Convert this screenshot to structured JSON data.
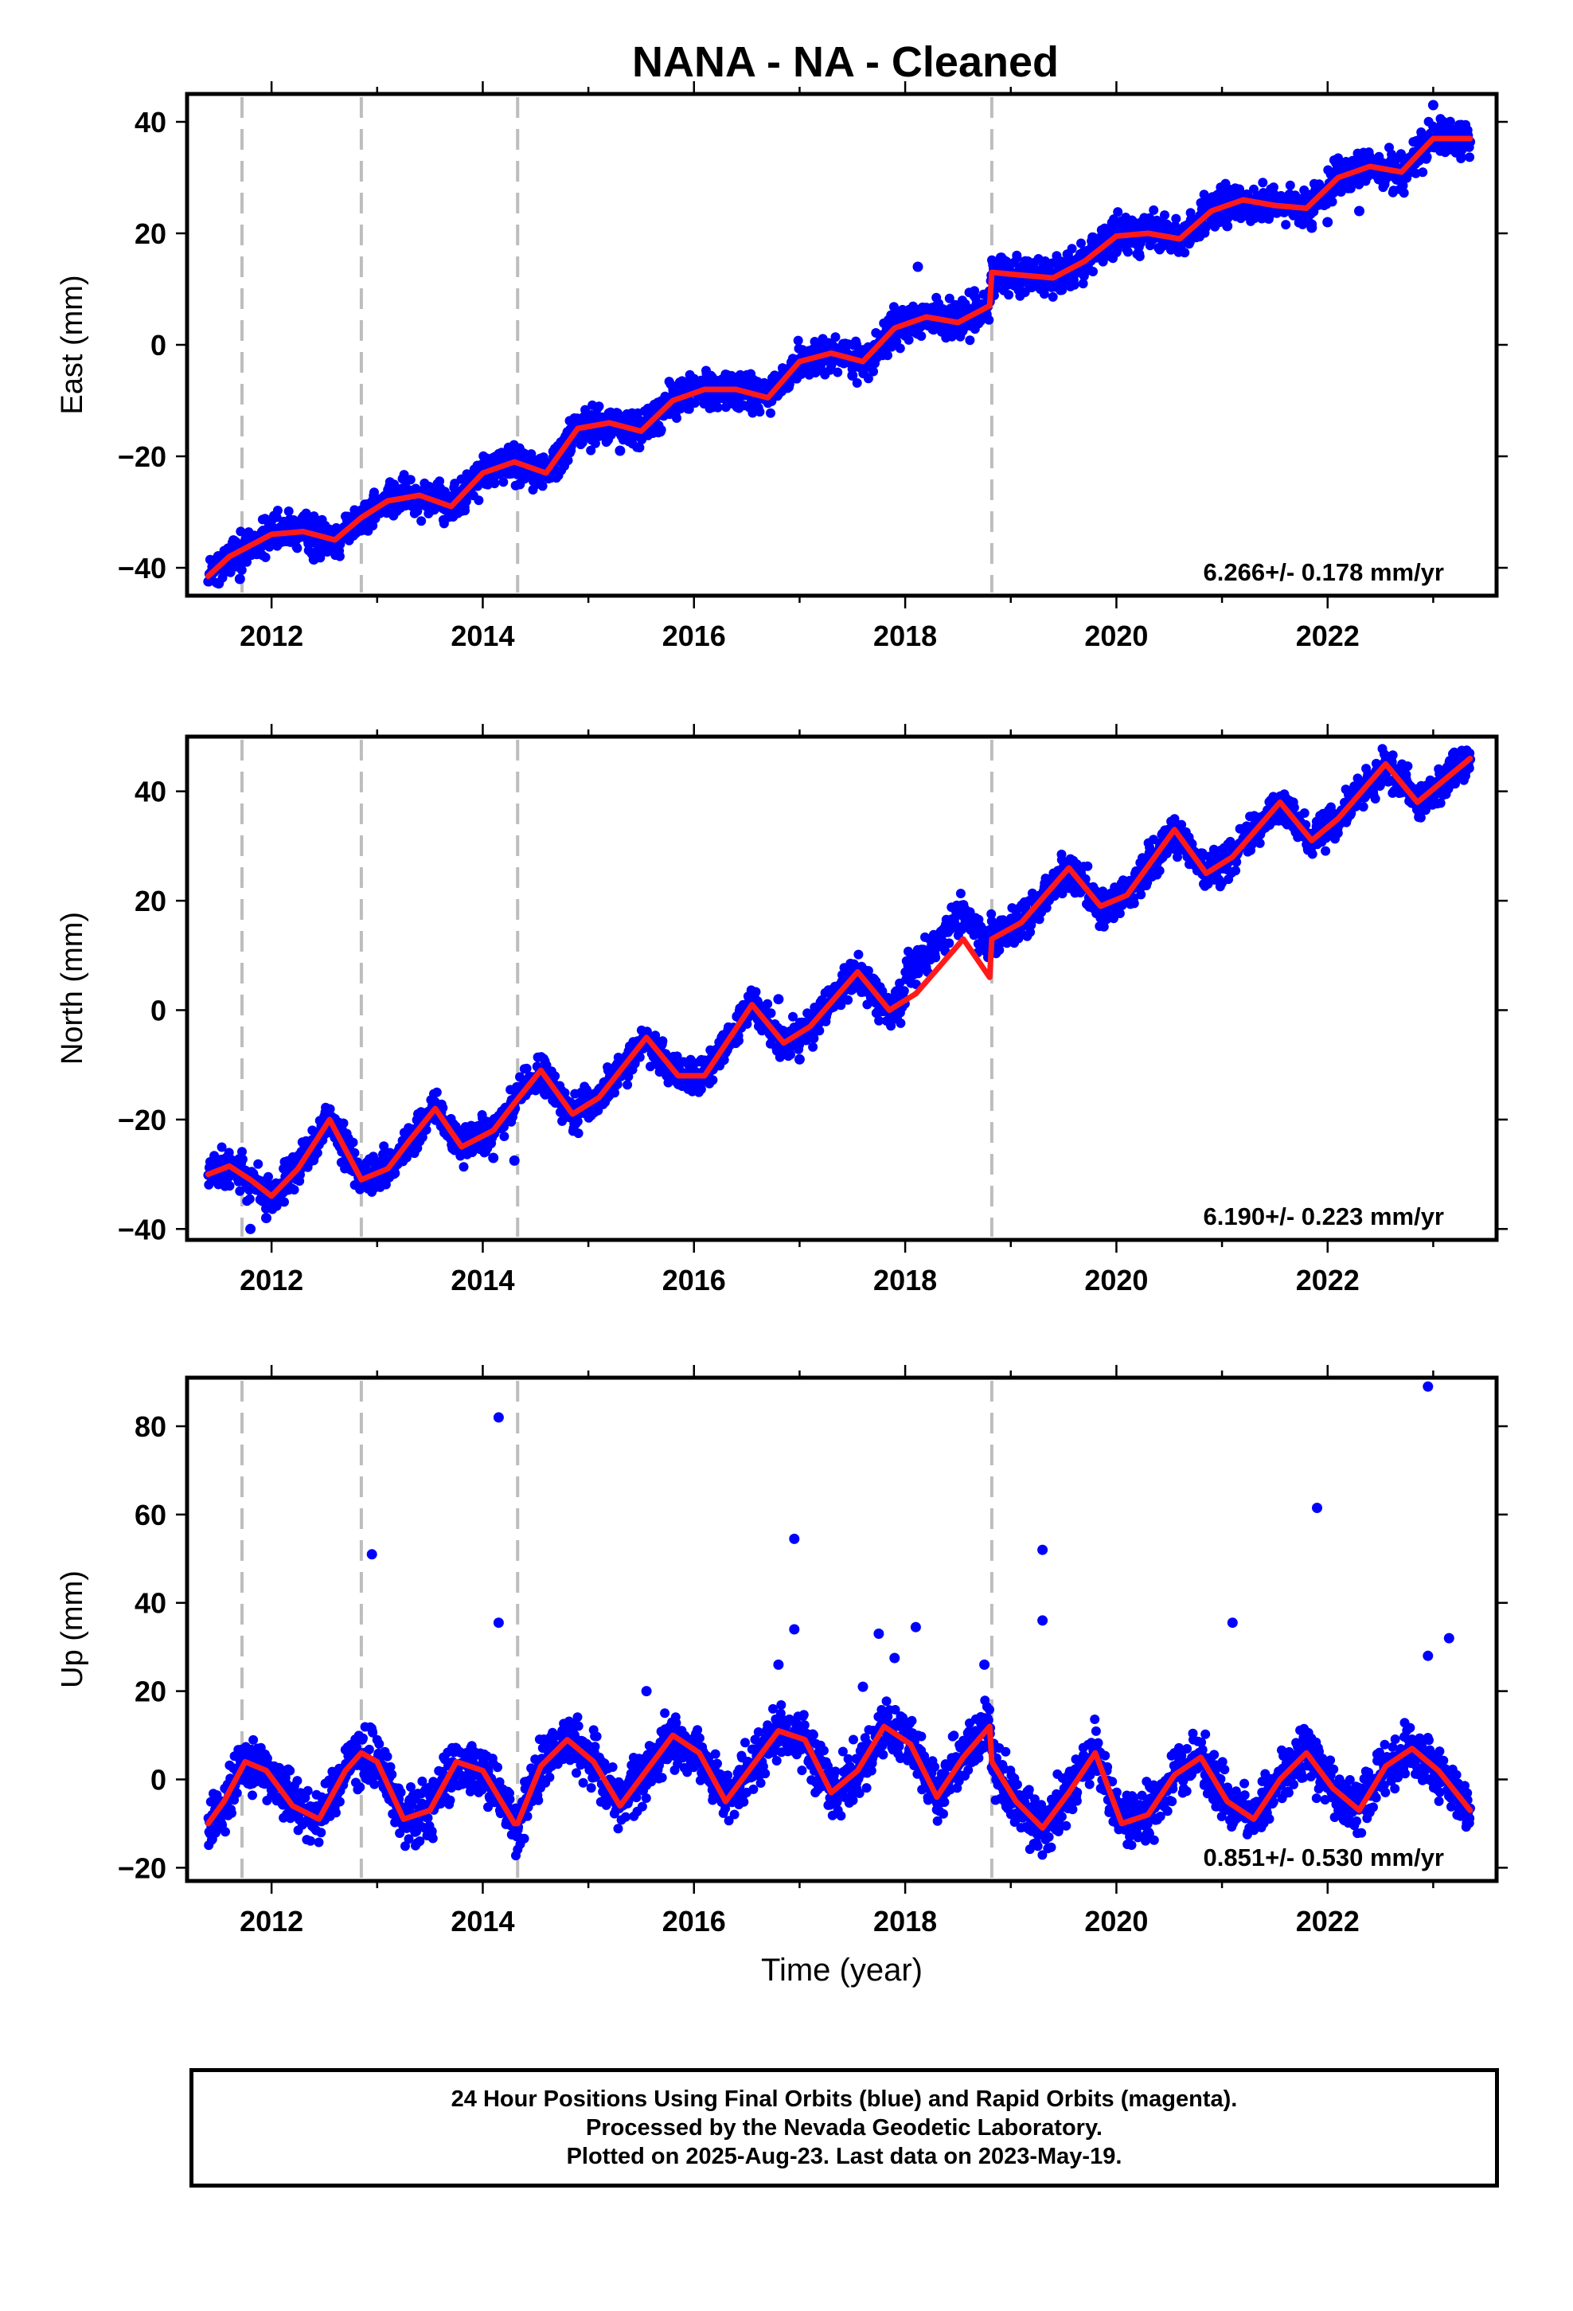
{
  "title": "NANA  - NA - Cleaned",
  "footer": {
    "line1": "24 Hour Positions Using Final Orbits (blue) and Rapid Orbits (magenta).",
    "line2": "Processed by the Nevada Geodetic Laboratory.",
    "line3": "Plotted on 2025-Aug-23. Last data on 2023-May-19."
  },
  "colors": {
    "points": "#0000ff",
    "fit": "#ff1a1a",
    "dashed_lines": "#bdbdbd",
    "frame": "#000000"
  },
  "chart_data": [
    {
      "type": "scatter",
      "ylabel": "East (mm)",
      "xlabel": "",
      "rate_label": "6.266+/- 0.178 mm/yr",
      "xlim": [
        2011.2,
        2023.6
      ],
      "ylim": [
        -45,
        45
      ],
      "xticks": [
        2012,
        2014,
        2016,
        2018,
        2020,
        2022
      ],
      "yticks": [
        -40,
        -20,
        0,
        20,
        40
      ],
      "ytick_labels": [
        "−40",
        "−20",
        "0",
        "20",
        "40"
      ],
      "dashed_lines_x": [
        2011.72,
        2012.85,
        2014.33,
        2018.82
      ],
      "series": [
        {
          "points_style": "blue dots",
          "fit": {
            "x": [
              2011.4,
              2011.6,
              2011.8,
              2012.0,
              2012.3,
              2012.6,
              2012.85,
              2013.1,
              2013.4,
              2013.7,
              2014.0,
              2014.3,
              2014.6,
              2014.9,
              2015.2,
              2015.5,
              2015.8,
              2016.1,
              2016.4,
              2016.7,
              2017.0,
              2017.3,
              2017.6,
              2017.9,
              2018.2,
              2018.5,
              2018.8,
              2018.82,
              2019.1,
              2019.4,
              2019.7,
              2020.0,
              2020.3,
              2020.6,
              2020.9,
              2021.2,
              2021.5,
              2021.8,
              2022.1,
              2022.4,
              2022.7,
              2023.0,
              2023.35
            ],
            "y": [
              -41.5,
              -38,
              -36,
              -34,
              -33.5,
              -35,
              -31,
              -28,
              -27,
              -29,
              -23,
              -21,
              -23,
              -15,
              -14,
              -15.5,
              -10,
              -8,
              -8,
              -9.5,
              -3,
              -1.5,
              -3,
              3,
              5,
              4,
              7,
              13,
              12.5,
              12,
              15,
              19.5,
              20,
              19,
              24,
              26,
              25,
              24.5,
              30,
              32,
              31,
              37,
              37
            ]
          },
          "scatter_halfwidth": 2.5,
          "outliers": [
            [
              2011.5,
              -42.8
            ],
            [
              2011.7,
              -42
            ],
            [
              2012.4,
              -38.5
            ],
            [
              2014.35,
              -25
            ],
            [
              2015.3,
              -19
            ],
            [
              2017.5,
              -5.5
            ],
            [
              2018.12,
              14
            ],
            [
              2021.05,
              21.3
            ],
            [
              2021.85,
              21
            ],
            [
              2022.0,
              22
            ],
            [
              2023.0,
              43
            ],
            [
              2022.3,
              24
            ]
          ]
        }
      ]
    },
    {
      "type": "scatter",
      "ylabel": "North (mm)",
      "xlabel": "",
      "rate_label": "6.190+/- 0.223 mm/yr",
      "xlim": [
        2011.2,
        2023.6
      ],
      "ylim": [
        -42,
        50
      ],
      "xticks": [
        2012,
        2014,
        2016,
        2018,
        2020,
        2022
      ],
      "yticks": [
        -40,
        -20,
        0,
        20,
        40
      ],
      "ytick_labels": [
        "−40",
        "−20",
        "0",
        "20",
        "40"
      ],
      "dashed_lines_x": [
        2011.72,
        2012.85,
        2014.33,
        2018.82
      ],
      "series": [
        {
          "points_style": "blue dots",
          "fit": {
            "x": [
              2011.4,
              2011.6,
              2011.8,
              2012.0,
              2012.25,
              2012.55,
              2012.85,
              2013.1,
              2013.3,
              2013.55,
              2013.8,
              2014.1,
              2014.3,
              2014.55,
              2014.85,
              2015.1,
              2015.55,
              2015.85,
              2016.1,
              2016.55,
              2016.85,
              2017.1,
              2017.55,
              2017.85,
              2018.1,
              2018.55,
              2018.8,
              2018.82,
              2019.1,
              2019.55,
              2019.85,
              2020.1,
              2020.55,
              2020.85,
              2021.1,
              2021.55,
              2021.85,
              2022.1,
              2022.55,
              2022.85,
              2023.35
            ],
            "y": [
              -30,
              -28.5,
              -31,
              -34,
              -29,
              -20,
              -31,
              -29,
              -24,
              -18,
              -25,
              -22,
              -17,
              -11,
              -19,
              -16,
              -5,
              -12,
              -12,
              1,
              -6,
              -3,
              7,
              0,
              3,
              13,
              6,
              13,
              16,
              26,
              19,
              21,
              33,
              25,
              28,
              38,
              31,
              35,
              45,
              38,
              46
            ]
          },
          "scatter_halfwidth": 2.5,
          "extra_cloud": {
            "x_range": [
              2018.0,
              2018.82
            ],
            "y_offset": 5
          },
          "outliers": [
            [
              2011.8,
              -40
            ],
            [
              2011.95,
              -38
            ],
            [
              2014.1,
              -27
            ],
            [
              2014.3,
              -27.5
            ],
            [
              2016.8,
              2
            ],
            [
              2017.0,
              -9
            ]
          ]
        }
      ]
    },
    {
      "type": "scatter",
      "ylabel": "Up (mm)",
      "xlabel": "Time (year)",
      "rate_label": "0.851+/- 0.530 mm/yr",
      "xlim": [
        2011.2,
        2023.6
      ],
      "ylim": [
        -23,
        91
      ],
      "xticks": [
        2012,
        2014,
        2016,
        2018,
        2020,
        2022
      ],
      "yticks": [
        -20,
        0,
        20,
        40,
        60,
        80
      ],
      "ytick_labels": [
        "−20",
        "0",
        "20",
        "40",
        "60",
        "80"
      ],
      "dashed_lines_x": [
        2011.72,
        2012.85,
        2014.33,
        2018.82
      ],
      "series": [
        {
          "points_style": "blue dots",
          "fit": {
            "x": [
              2011.4,
              2011.55,
              2011.75,
              2011.95,
              2012.2,
              2012.45,
              2012.7,
              2012.85,
              2013.0,
              2013.25,
              2013.5,
              2013.75,
              2014.0,
              2014.3,
              2014.33,
              2014.55,
              2014.8,
              2015.05,
              2015.3,
              2015.55,
              2015.8,
              2016.05,
              2016.3,
              2016.55,
              2016.8,
              2017.05,
              2017.3,
              2017.55,
              2017.8,
              2018.05,
              2018.3,
              2018.55,
              2018.8,
              2018.82,
              2019.05,
              2019.3,
              2019.55,
              2019.8,
              2020.05,
              2020.3,
              2020.55,
              2020.8,
              2021.05,
              2021.3,
              2021.55,
              2021.8,
              2022.05,
              2022.3,
              2022.55,
              2022.8,
              2023.05,
              2023.35
            ],
            "y": [
              -10,
              -5,
              4,
              2,
              -6,
              -9,
              2,
              6,
              4,
              -9,
              -7,
              4,
              2,
              -10,
              -10,
              3,
              9,
              4,
              -6,
              2,
              10,
              6,
              -5,
              3,
              11,
              9,
              -3,
              2,
              12,
              8,
              -4,
              5,
              12,
              4,
              -5,
              -11,
              -3,
              6,
              -10,
              -8,
              1,
              5,
              -5,
              -9,
              0,
              6,
              -2,
              -7,
              3,
              7,
              2,
              -7
            ]
          },
          "scatter_halfwidth": 4.5,
          "outliers": [
            [
              2012.95,
              51
            ],
            [
              2014.15,
              82
            ],
            [
              2014.15,
              35.5
            ],
            [
              2016.95,
              54.5
            ],
            [
              2016.95,
              34
            ],
            [
              2017.75,
              33
            ],
            [
              2017.9,
              27.5
            ],
            [
              2018.1,
              34.5
            ],
            [
              2018.75,
              26
            ],
            [
              2019.3,
              52
            ],
            [
              2019.3,
              36
            ],
            [
              2021.1,
              35.5
            ],
            [
              2021.9,
              61.5
            ],
            [
              2022.95,
              89
            ],
            [
              2023.15,
              32
            ],
            [
              2022.95,
              28
            ],
            [
              2016.8,
              26
            ],
            [
              2015.55,
              20
            ],
            [
              2017.6,
              21
            ]
          ]
        }
      ]
    }
  ]
}
